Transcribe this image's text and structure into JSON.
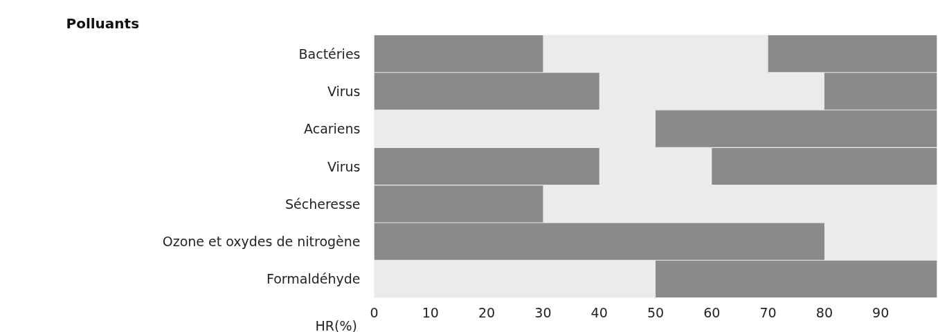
{
  "chart_data": {
    "type": "bar",
    "orientation": "horizontal",
    "title": "Polluants",
    "xlabel": "HR(%)",
    "categories": [
      "Bactéries",
      "Virus",
      "Acariens",
      "Virus",
      "Sécheresse",
      "Ozone et oxydes de nitrogène",
      "Formaldéhyde"
    ],
    "series": [
      {
        "color": "#8a8a8a",
        "base": [
          0,
          0,
          null,
          0,
          0,
          0,
          null
        ],
        "values": [
          30,
          40,
          null,
          40,
          30,
          80,
          null
        ]
      },
      {
        "color": "#8a8a8a",
        "base": [
          70,
          80,
          50,
          60,
          null,
          null,
          50
        ],
        "values": [
          30,
          20,
          50,
          40,
          null,
          null,
          50
        ]
      }
    ],
    "xlim": [
      0,
      100
    ],
    "xticks": [
      0,
      10,
      20,
      30,
      40,
      50,
      60,
      70,
      80,
      90
    ],
    "grid": false
  }
}
